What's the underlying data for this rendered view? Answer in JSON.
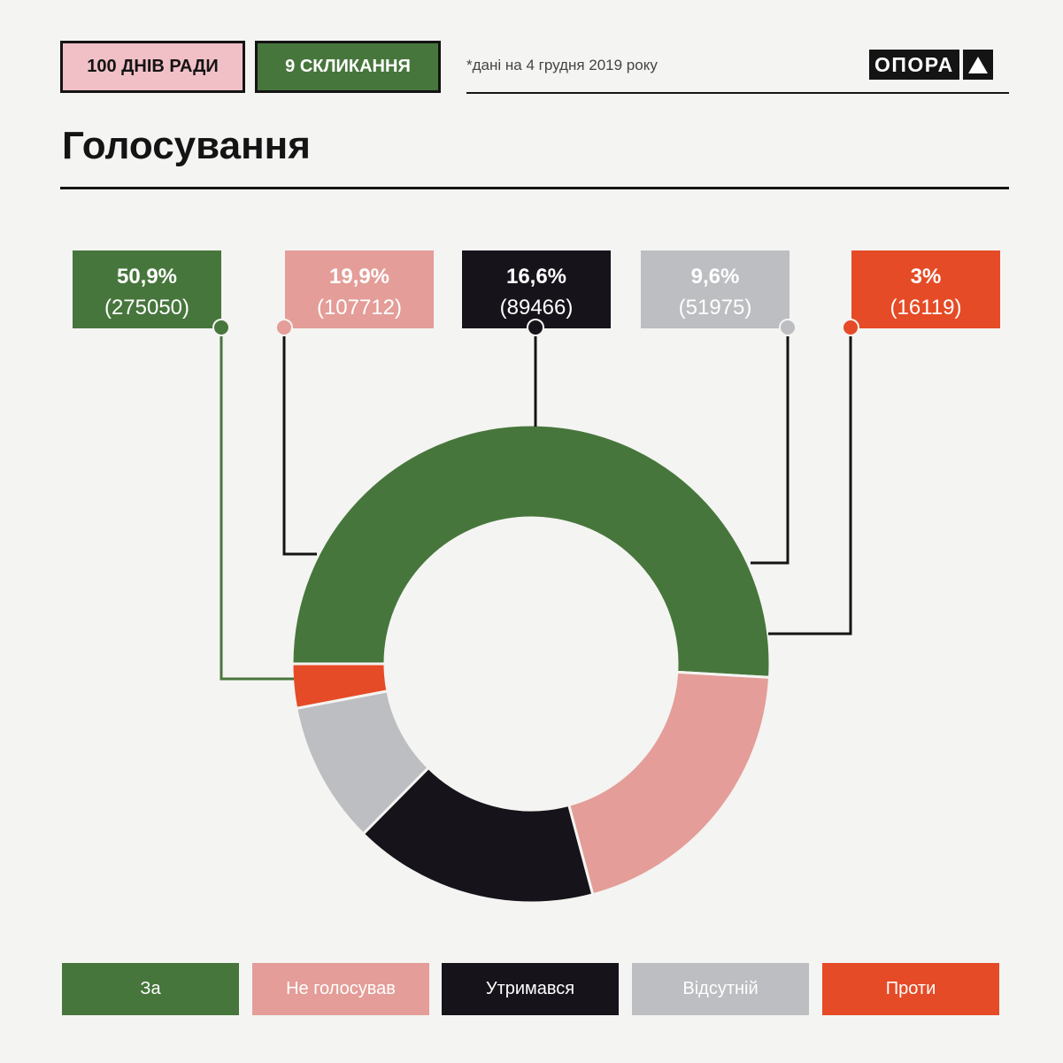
{
  "header": {
    "tag_days": "100 ДНІВ РАДИ",
    "tag_convocation": "9 СКЛИКАННЯ",
    "note": "*дані на 4 грудня 2019 року",
    "logo": "ОПОРА"
  },
  "colors": {
    "za": "#47763c",
    "ne_holosuvav": "#e49d98",
    "utrymavsia": "#17131a",
    "vidsutnii": "#bdbec1",
    "proty": "#e54b26",
    "background": "#f4f4f2"
  },
  "chart_data": {
    "type": "pie",
    "variant": "donut",
    "title": "Голосування",
    "categories": [
      "За",
      "Не голосував",
      "Утримався",
      "Відсутній",
      "Проти"
    ],
    "values": [
      275050,
      107712,
      89466,
      51975,
      16119
    ],
    "percent_labels": [
      "50,9%",
      "19,9%",
      "16,6%",
      "9,6%",
      "3%"
    ],
    "count_labels": [
      "(275050)",
      "(107712)",
      "(89466)",
      "(51975)",
      "(16119)"
    ],
    "legend_position": "bottom"
  }
}
